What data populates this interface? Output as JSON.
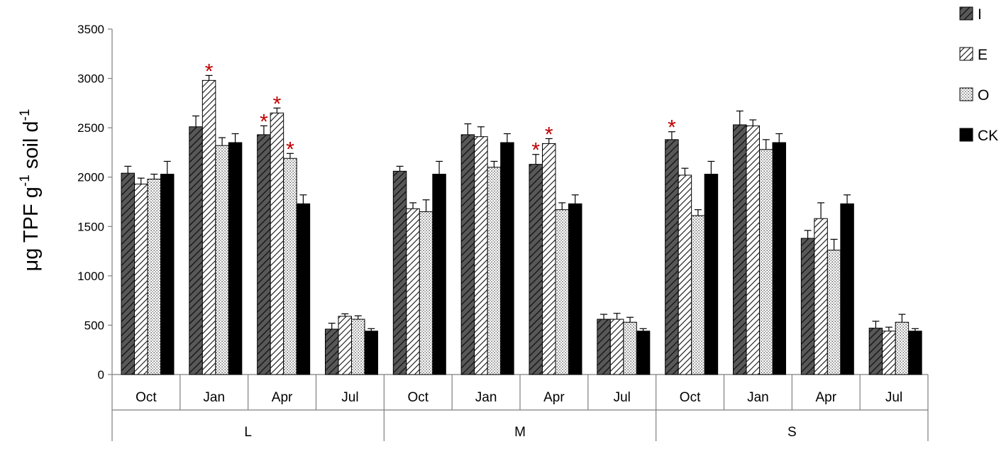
{
  "chart_data": {
    "type": "bar",
    "ylabel": {
      "main": "μg TPF  g",
      "sup1": "-1",
      "mid": " soil  d",
      "sup2": "-1"
    },
    "ylim": [
      0,
      3500
    ],
    "yticks": [
      0,
      500,
      1000,
      1500,
      2000,
      2500,
      3000,
      3500
    ],
    "groups": [
      {
        "name": "L",
        "categories": [
          "Oct",
          "Jan",
          "Apr",
          "Jul"
        ]
      },
      {
        "name": "M",
        "categories": [
          "Oct",
          "Jan",
          "Apr",
          "Jul"
        ]
      },
      {
        "name": "S",
        "categories": [
          "Oct",
          "Jan",
          "Apr",
          "Jul"
        ]
      }
    ],
    "series": [
      {
        "name": "I",
        "pattern": "dark-hatch",
        "values": [
          2040,
          2510,
          2430,
          460,
          2060,
          2430,
          2130,
          560,
          2380,
          2530,
          1380,
          470
        ],
        "errors": [
          70,
          110,
          90,
          60,
          50,
          110,
          100,
          50,
          80,
          140,
          80,
          70
        ],
        "significant": [
          false,
          false,
          true,
          false,
          false,
          false,
          true,
          false,
          true,
          false,
          false,
          false
        ]
      },
      {
        "name": "E",
        "pattern": "light-hatch",
        "values": [
          1930,
          2980,
          2650,
          590,
          1680,
          2410,
          2340,
          560,
          2020,
          2520,
          1580,
          440
        ],
        "errors": [
          60,
          50,
          50,
          25,
          60,
          100,
          50,
          60,
          70,
          60,
          160,
          40
        ],
        "significant": [
          false,
          true,
          true,
          false,
          false,
          false,
          true,
          false,
          false,
          false,
          false,
          false
        ]
      },
      {
        "name": "O",
        "pattern": "dots",
        "values": [
          1980,
          2320,
          2190,
          560,
          1650,
          2100,
          1670,
          530,
          1610,
          2280,
          1260,
          530
        ],
        "errors": [
          50,
          80,
          50,
          35,
          120,
          60,
          70,
          50,
          60,
          100,
          110,
          80
        ],
        "significant": [
          false,
          false,
          true,
          false,
          false,
          false,
          false,
          false,
          false,
          false,
          false,
          false
        ]
      },
      {
        "name": "CK",
        "pattern": "solid",
        "values": [
          2030,
          2350,
          1730,
          440,
          2030,
          2350,
          1730,
          440,
          2030,
          2350,
          1730,
          440
        ],
        "errors": [
          130,
          90,
          90,
          25,
          130,
          90,
          90,
          25,
          130,
          90,
          90,
          25
        ],
        "significant": [
          false,
          false,
          false,
          false,
          false,
          false,
          false,
          false,
          false,
          false,
          false,
          false
        ]
      }
    ],
    "significance_marker": "*",
    "legend_position": "top-right",
    "grid": false,
    "colors": {
      "star": "#c00000",
      "bar_dark": "#555555",
      "axis": "#7f7f7f",
      "solid": "#000000"
    }
  }
}
